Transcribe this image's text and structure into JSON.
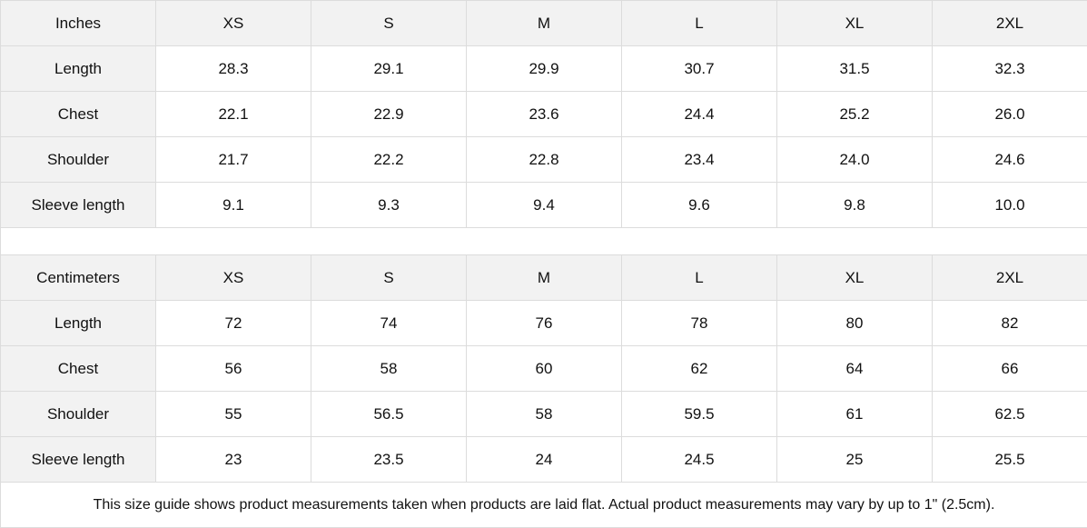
{
  "tables": [
    {
      "unit": "Inches",
      "sizes": [
        "XS",
        "S",
        "M",
        "L",
        "XL",
        "2XL"
      ],
      "rows": [
        {
          "label": "Length",
          "values": [
            "28.3",
            "29.1",
            "29.9",
            "30.7",
            "31.5",
            "32.3"
          ]
        },
        {
          "label": "Chest",
          "values": [
            "22.1",
            "22.9",
            "23.6",
            "24.4",
            "25.2",
            "26.0"
          ]
        },
        {
          "label": "Shoulder",
          "values": [
            "21.7",
            "22.2",
            "22.8",
            "23.4",
            "24.0",
            "24.6"
          ]
        },
        {
          "label": "Sleeve length",
          "values": [
            "9.1",
            "9.3",
            "9.4",
            "9.6",
            "9.8",
            "10.0"
          ]
        }
      ]
    },
    {
      "unit": "Centimeters",
      "sizes": [
        "XS",
        "S",
        "M",
        "L",
        "XL",
        "2XL"
      ],
      "rows": [
        {
          "label": "Length",
          "values": [
            "72",
            "74",
            "76",
            "78",
            "80",
            "82"
          ]
        },
        {
          "label": "Chest",
          "values": [
            "56",
            "58",
            "60",
            "62",
            "64",
            "66"
          ]
        },
        {
          "label": "Shoulder",
          "values": [
            "55",
            "56.5",
            "58",
            "59.5",
            "61",
            "62.5"
          ]
        },
        {
          "label": "Sleeve length",
          "values": [
            "23",
            "23.5",
            "24",
            "24.5",
            "25",
            "25.5"
          ]
        }
      ]
    }
  ],
  "footnote": "This size guide shows product measurements taken when products are laid flat.  Actual product measurements may vary by up to 1\" (2.5cm).",
  "colors": {
    "header_bg": "#f2f2f2",
    "border": "#dcdcdc"
  }
}
